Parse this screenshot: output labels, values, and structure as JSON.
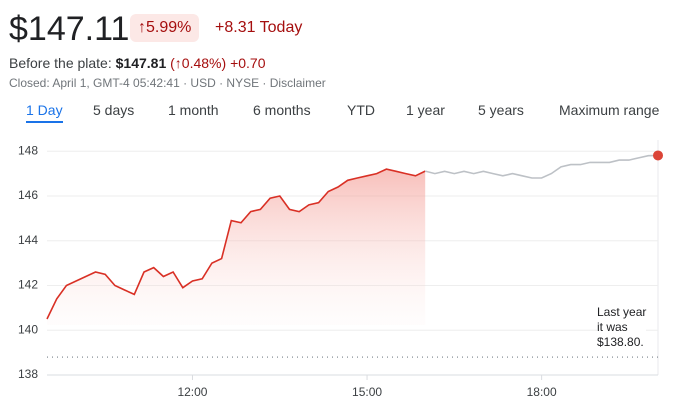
{
  "header": {
    "price": "$147.11",
    "change_pct": "↑5.99%",
    "change_today": "+8.31 Today",
    "premarket_label": "Before the plate:",
    "premarket_price": "$147.81",
    "premarket_change_pct": "(↑0.48%)",
    "premarket_change": "+0.70",
    "status": "Closed: April 1, GMT-4 05:42:41 · USD · NYSE · Disclaimer"
  },
  "tabs": [
    "1 Day",
    "5 days",
    "1 month",
    "6 months",
    "YTD",
    "1 year",
    "5 years",
    "Maximum range"
  ],
  "selected_tab": 0,
  "chart_data": {
    "type": "line",
    "x": [
      570,
      580,
      590,
      600,
      610,
      620,
      630,
      640,
      650,
      660,
      670,
      680,
      690,
      700,
      710,
      720,
      730,
      740,
      750,
      760,
      770,
      780,
      790,
      800,
      810,
      820,
      830,
      840,
      850,
      860,
      870,
      880,
      890,
      900,
      910,
      920,
      930,
      940,
      950,
      960,
      970,
      980,
      990,
      1000,
      1010,
      1020,
      1030,
      1040,
      1050,
      1060,
      1070,
      1080,
      1090,
      1100,
      1110,
      1120,
      1130,
      1140,
      1150,
      1160,
      1170,
      1180,
      1190,
      1200
    ],
    "xlim": [
      570,
      1200
    ],
    "xticks": [
      {
        "value": 720,
        "label": "12:00"
      },
      {
        "value": 900,
        "label": "15:00"
      },
      {
        "value": 1080,
        "label": "18:00"
      }
    ],
    "ylim": [
      138,
      148.5
    ],
    "yticks": [
      138,
      140,
      142,
      144,
      146,
      148
    ],
    "grid": true,
    "series": [
      {
        "color": "#d93025",
        "fill": true,
        "values": [
          140.5,
          141.4,
          142.0,
          142.2,
          142.4,
          142.6,
          142.5,
          142.0,
          141.8,
          141.6,
          142.6,
          142.8,
          142.4,
          142.6,
          141.9,
          142.2,
          142.3,
          143.0,
          143.2,
          144.9,
          144.8,
          145.3,
          145.4,
          145.9,
          146.0,
          145.4,
          145.3,
          145.6,
          145.7,
          146.2,
          146.4,
          146.7,
          146.8,
          146.9,
          147.0,
          147.2,
          147.1,
          147.0,
          146.9,
          147.11,
          null,
          null,
          null,
          null,
          null,
          null,
          null,
          null,
          null,
          null,
          null,
          null,
          null,
          null,
          null,
          null,
          null,
          null,
          null,
          null,
          null,
          null,
          null,
          null
        ]
      },
      {
        "color": "#bdc1c6",
        "end_marker": "#db4437",
        "values": [
          null,
          null,
          null,
          null,
          null,
          null,
          null,
          null,
          null,
          null,
          null,
          null,
          null,
          null,
          null,
          null,
          null,
          null,
          null,
          null,
          null,
          null,
          null,
          null,
          null,
          null,
          null,
          null,
          null,
          null,
          null,
          null,
          null,
          null,
          null,
          null,
          null,
          null,
          null,
          147.11,
          147.0,
          147.1,
          147.0,
          147.1,
          147.0,
          147.1,
          147.0,
          146.9,
          147.0,
          146.9,
          146.8,
          146.8,
          147.0,
          147.3,
          147.4,
          147.4,
          147.5,
          147.5,
          147.5,
          147.6,
          147.6,
          147.7,
          147.8,
          147.81
        ]
      }
    ],
    "reference_line": 138.8,
    "annotation": [
      "Last year",
      "it was",
      "$138.80."
    ]
  }
}
